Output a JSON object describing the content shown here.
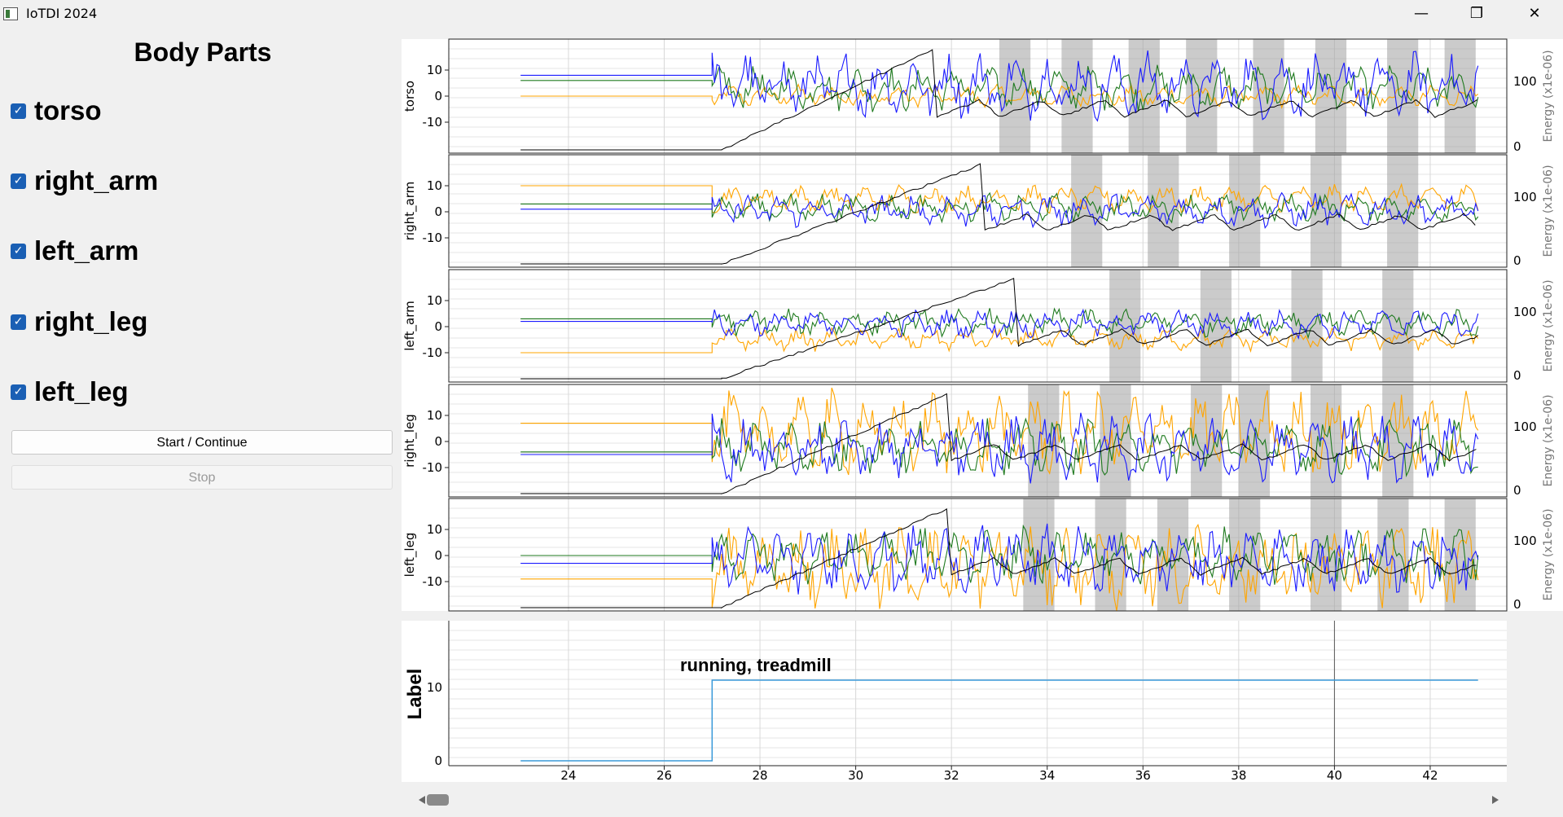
{
  "window": {
    "title": "IoTDI 2024",
    "minimize": "—",
    "maximize": "❐",
    "close": "✕"
  },
  "panel": {
    "title": "Body Parts",
    "checkboxes": [
      {
        "label": "torso",
        "checked": true
      },
      {
        "label": "right_arm",
        "checked": true
      },
      {
        "label": "left_arm",
        "checked": true
      },
      {
        "label": "right_leg",
        "checked": true
      },
      {
        "label": "left_leg",
        "checked": true
      }
    ],
    "start_button": "Start / Continue",
    "stop_button": "Stop"
  },
  "colors": {
    "blue": "#1a1aff",
    "green": "#1f7a1f",
    "orange": "#ffa500",
    "energy": "#000000",
    "label_line": "#3a9ad9",
    "shade": "#a0a0a0",
    "checkbox": "#1a5fb4"
  },
  "chart_data": [
    {
      "type": "line",
      "ylabel": "torso",
      "ylabel2": "Energy (x1e-06)",
      "yticks": [
        "10",
        "0",
        "-10"
      ],
      "y2ticks": [
        "100",
        "0"
      ],
      "pre_values": {
        "blue": 8,
        "green": 6,
        "orange": 0
      },
      "amplitudes": {
        "blue": 12,
        "green": 8,
        "orange": 4
      },
      "energy_resets": [
        31.7
      ],
      "shaded_spans": [
        [
          33.0,
          33.65
        ],
        [
          34.3,
          34.95
        ],
        [
          35.7,
          36.35
        ],
        [
          36.9,
          37.55
        ],
        [
          38.3,
          38.95
        ],
        [
          39.6,
          40.25
        ],
        [
          41.1,
          41.75
        ],
        [
          42.3,
          42.95
        ]
      ]
    },
    {
      "type": "line",
      "ylabel": "right_arm",
      "ylabel2": "Energy (x1e-06)",
      "yticks": [
        "10",
        "0",
        "-10"
      ],
      "y2ticks": [
        "100",
        "0"
      ],
      "pre_values": {
        "blue": 1,
        "green": 3,
        "orange": 10
      },
      "amplitudes": {
        "blue": 6,
        "green": 5,
        "orange": 5
      },
      "energy_resets": [
        32.7
      ],
      "shaded_spans": [
        [
          34.5,
          35.15
        ],
        [
          36.1,
          36.75
        ],
        [
          37.8,
          38.45
        ],
        [
          39.5,
          40.15
        ],
        [
          41.1,
          41.75
        ]
      ]
    },
    {
      "type": "line",
      "ylabel": "left_arm",
      "ylabel2": "Energy (x1e-06)",
      "yticks": [
        "10",
        "0",
        "-10"
      ],
      "y2ticks": [
        "100",
        "0"
      ],
      "pre_values": {
        "blue": 2,
        "green": 3,
        "orange": -10
      },
      "amplitudes": {
        "blue": 5,
        "green": 5,
        "orange": 4
      },
      "energy_resets": [
        33.4
      ],
      "shaded_spans": [
        [
          35.3,
          35.95
        ],
        [
          37.2,
          37.85
        ],
        [
          39.1,
          39.75
        ],
        [
          41.0,
          41.65
        ]
      ]
    },
    {
      "type": "line",
      "ylabel": "right_leg",
      "ylabel2": "Energy (x1e-06)",
      "yticks": [
        "10",
        "0",
        "-10"
      ],
      "y2ticks": [
        "100",
        "0"
      ],
      "pre_values": {
        "blue": -5,
        "green": -4,
        "orange": 7
      },
      "amplitudes": {
        "blue": 12,
        "green": 10,
        "orange": 15
      },
      "energy_resets": [
        32.0
      ],
      "shaded_spans": [
        [
          33.6,
          34.25
        ],
        [
          35.1,
          35.75
        ],
        [
          37.0,
          37.65
        ],
        [
          38.0,
          38.65
        ],
        [
          39.5,
          40.15
        ],
        [
          41.0,
          41.65
        ]
      ]
    },
    {
      "type": "line",
      "ylabel": "left_leg",
      "ylabel2": "Energy (x1e-06)",
      "yticks": [
        "10",
        "0",
        "-10"
      ],
      "y2ticks": [
        "100",
        "0"
      ],
      "pre_values": {
        "blue": -3,
        "green": 0,
        "orange": -9
      },
      "amplitudes": {
        "blue": 12,
        "green": 10,
        "orange": 15
      },
      "energy_resets": [
        32.0
      ],
      "shaded_spans": [
        [
          33.5,
          34.15
        ],
        [
          35.0,
          35.65
        ],
        [
          36.3,
          36.95
        ],
        [
          37.8,
          38.45
        ],
        [
          39.5,
          40.15
        ],
        [
          40.9,
          41.55
        ],
        [
          42.3,
          42.95
        ]
      ]
    },
    {
      "type": "line",
      "ylabel": "Label",
      "yticks": [
        "10",
        "0"
      ],
      "x": [
        23,
        27,
        27,
        43
      ],
      "y": [
        0,
        0,
        11,
        11
      ],
      "annotation": "running, treadmill",
      "xticks": [
        "24",
        "26",
        "28",
        "30",
        "32",
        "34",
        "36",
        "38",
        "40",
        "42"
      ],
      "xlim": [
        21.5,
        43.6
      ]
    }
  ]
}
